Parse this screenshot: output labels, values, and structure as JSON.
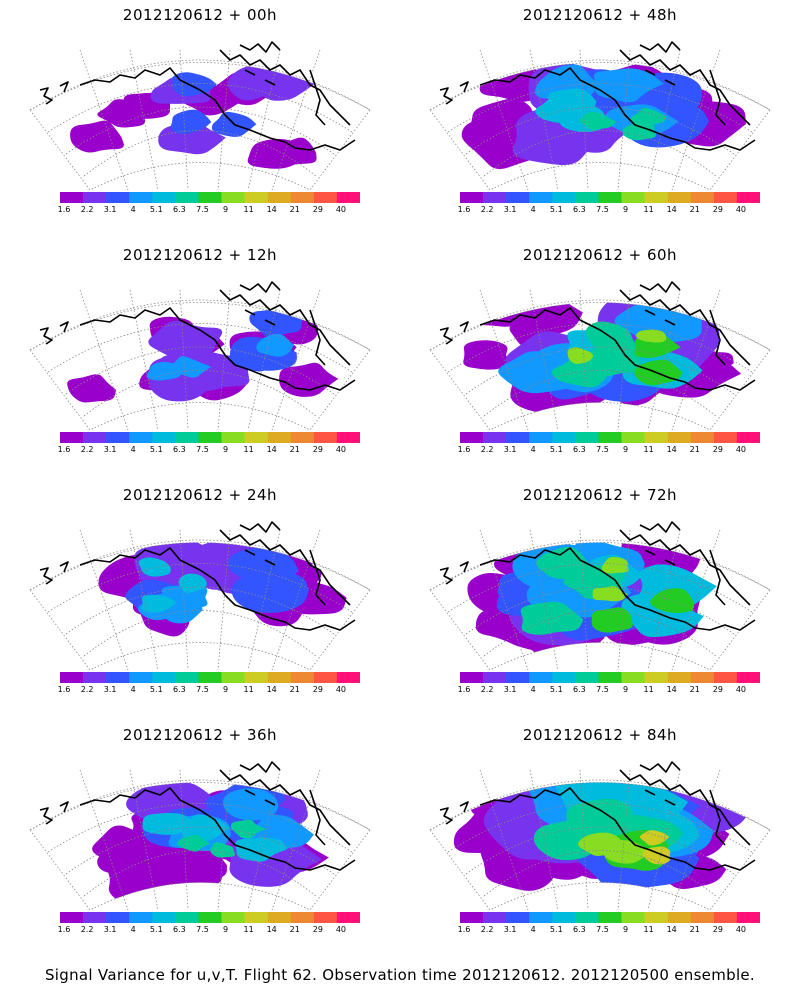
{
  "caption": "Signal Variance for u,v,T. Flight 62. Observation time 2012120612. 2012120500 ensemble.",
  "colorbar": {
    "labels": [
      "1.6",
      "2.2",
      "3.1",
      "4",
      "5.1",
      "6.3",
      "7.5",
      "9",
      "11",
      "14",
      "21",
      "29",
      "40"
    ],
    "colors": [
      "#9900cc",
      "#7733ee",
      "#3355ff",
      "#1199ff",
      "#00bbdd",
      "#00cc99",
      "#22cc22",
      "#88dd22",
      "#cccc22",
      "#ddaa22",
      "#ee8833",
      "#ff5544",
      "#ff1177"
    ]
  },
  "panels": [
    {
      "title": "2012120612 + 00h",
      "level": 0.1
    },
    {
      "title": "2012120612 + 48h",
      "level": 0.55
    },
    {
      "title": "2012120612 + 12h",
      "level": 0.25
    },
    {
      "title": "2012120612 + 60h",
      "level": 0.7
    },
    {
      "title": "2012120612 + 24h",
      "level": 0.35
    },
    {
      "title": "2012120612 + 72h",
      "level": 0.8
    },
    {
      "title": "2012120612 + 36h",
      "level": 0.45
    },
    {
      "title": "2012120612 + 84h",
      "level": 0.9
    }
  ]
}
